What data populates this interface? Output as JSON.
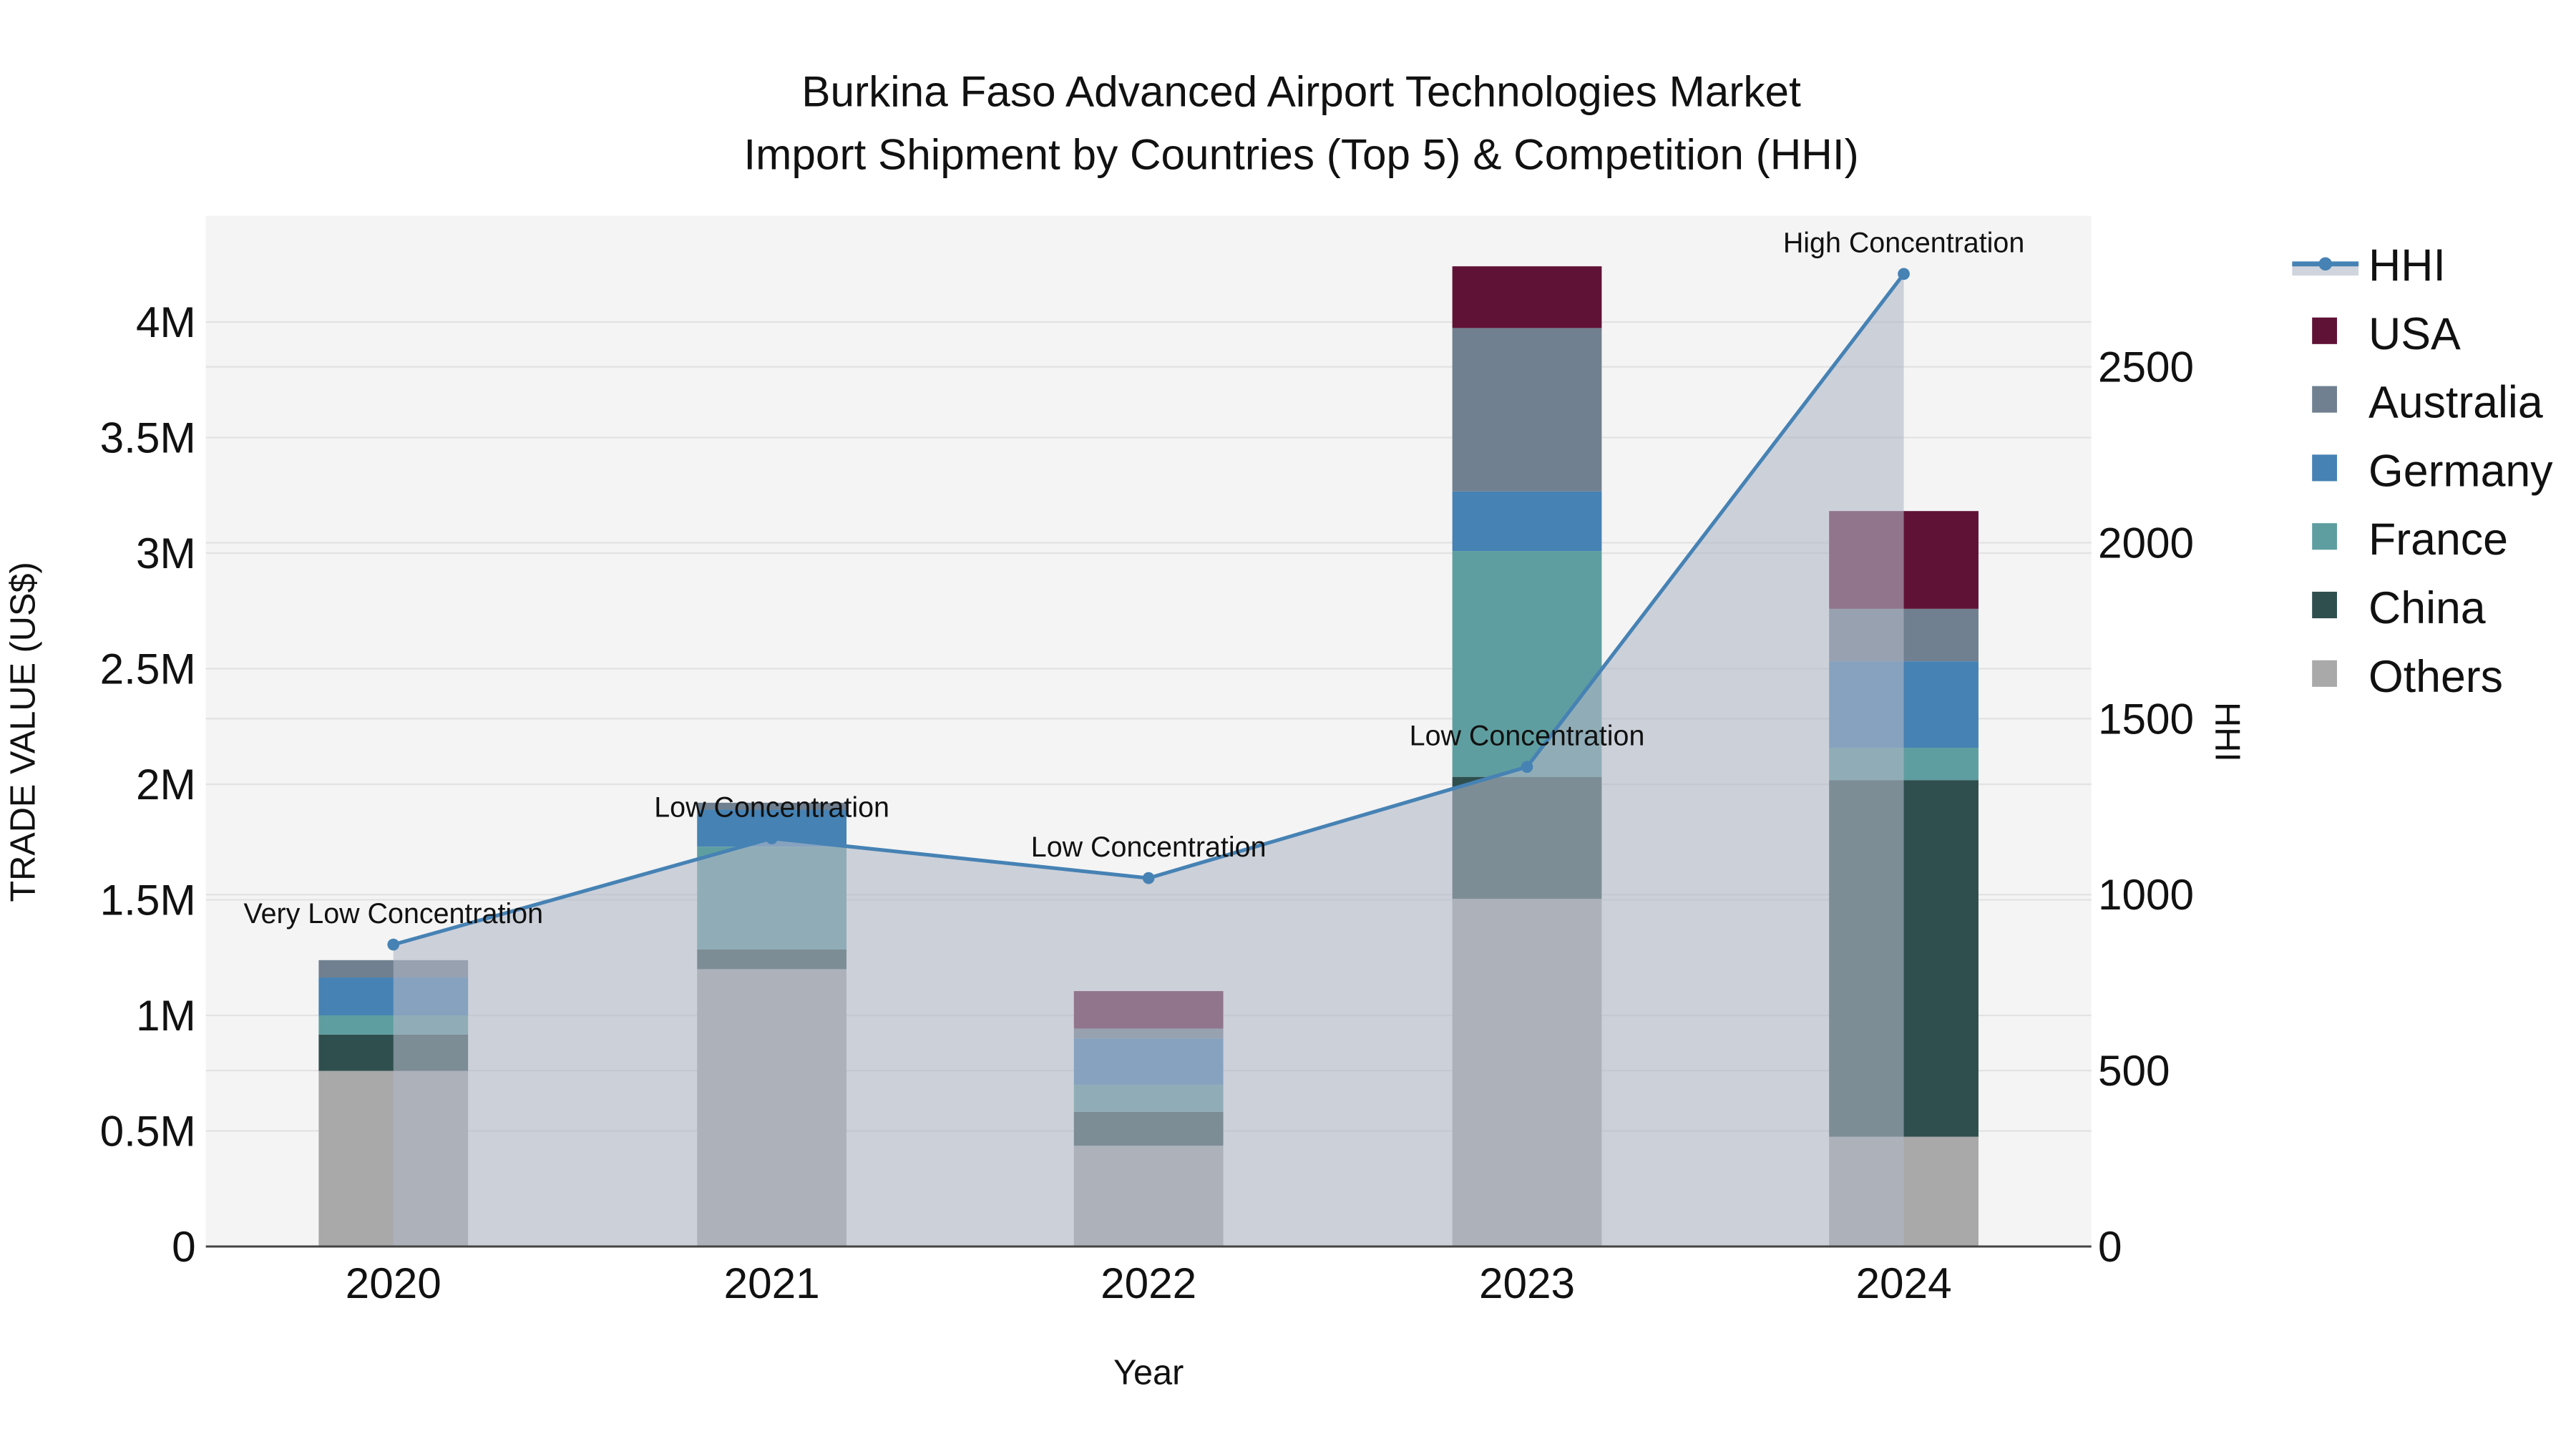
{
  "title": {
    "line1": "Burkina Faso Advanced Airport Technologies Market",
    "line2": "Import Shipment by Countries (Top 5) & Competition (HHI)"
  },
  "axes": {
    "x_title": "Year",
    "y_left_title": "TRADE VALUE (US$)",
    "y_right_title": "HHI",
    "y_left_ticks": [
      "0",
      "0.5M",
      "1M",
      "1.5M",
      "2M",
      "2.5M",
      "3M",
      "3.5M",
      "4M"
    ],
    "y_right_ticks": [
      "0",
      "500",
      "1000",
      "1500",
      "2000",
      "2500"
    ],
    "x_ticks": [
      "2020",
      "2021",
      "2022",
      "2023",
      "2024"
    ]
  },
  "legend": {
    "items": [
      {
        "label": "HHI",
        "type": "line",
        "color": "#4682B4"
      },
      {
        "label": "USA",
        "type": "bar",
        "color": "#601236"
      },
      {
        "label": "Australia",
        "type": "bar",
        "color": "#708090"
      },
      {
        "label": "Germany",
        "type": "bar",
        "color": "#4682B4"
      },
      {
        "label": "France",
        "type": "bar",
        "color": "#5F9EA0"
      },
      {
        "label": "China",
        "type": "bar",
        "color": "#2F4F4F"
      },
      {
        "label": "Others",
        "type": "bar",
        "color": "#A9A9A9"
      }
    ]
  },
  "colors": {
    "plot_bg": "#F4F4F4",
    "grid": "#E2E2E2",
    "hhi_line": "#4682B4",
    "hhi_fill": "rgba(176,184,198,0.6)",
    "axis_line": "#444444"
  },
  "chart_data": {
    "type": "bar",
    "title": "Burkina Faso Advanced Airport Technologies Market Import Shipment by Countries (Top 5) & Competition (HHI)",
    "xlabel": "Year",
    "ylabel": "TRADE VALUE (US$)",
    "y2label": "HHI",
    "stacked": true,
    "categories": [
      "2020",
      "2021",
      "2022",
      "2023",
      "2024"
    ],
    "ylim": [
      0,
      4460000
    ],
    "y2lim": [
      0,
      2930
    ],
    "grid": true,
    "legend_position": "right",
    "series": [
      {
        "name": "Others",
        "color": "#A9A9A9",
        "values": [
          760000,
          1200000,
          436000,
          1504000,
          475000
        ]
      },
      {
        "name": "China",
        "color": "#2F4F4F",
        "values": [
          157000,
          85000,
          147000,
          528000,
          1543000
        ]
      },
      {
        "name": "France",
        "color": "#5F9EA0",
        "values": [
          83000,
          445000,
          117000,
          977000,
          140000
        ]
      },
      {
        "name": "Germany",
        "color": "#4682B4",
        "values": [
          164000,
          160000,
          200000,
          258000,
          374000
        ]
      },
      {
        "name": "Australia",
        "color": "#708090",
        "values": [
          75000,
          30000,
          43000,
          707000,
          227000
        ]
      },
      {
        "name": "USA",
        "color": "#601236",
        "values": [
          0,
          0,
          162000,
          267000,
          423000
        ]
      }
    ],
    "line_series": {
      "name": "HHI",
      "axis": "right",
      "color": "#4682B4",
      "values": [
        858,
        1160,
        1047,
        1363,
        2764
      ],
      "annotations": [
        "Very Low Concentration",
        "Low Concentration",
        "Low Concentration",
        "Low Concentration",
        "High Concentration"
      ]
    }
  }
}
